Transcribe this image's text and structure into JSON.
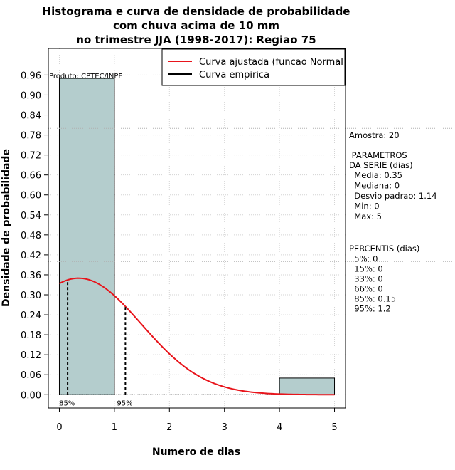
{
  "chart_data": {
    "type": "histogram",
    "title_lines": [
      "Histograma e curva de densidade de probabilidade",
      "com chuva acima de 10 mm",
      "no trimestre JJA (1998-2017): Regiao 75"
    ],
    "xlabel": "Numero de dias",
    "ylabel": "Densidade de probabilidade",
    "xlim": [
      -0.2,
      5.2
    ],
    "ylim": [
      -0.04,
      1.04
    ],
    "x_ticks": [
      0,
      1,
      2,
      3,
      4,
      5
    ],
    "y_ticks": [
      0.0,
      0.06,
      0.12,
      0.18,
      0.24,
      0.3,
      0.36,
      0.42,
      0.48,
      0.54,
      0.6,
      0.66,
      0.72,
      0.78,
      0.84,
      0.9,
      0.96
    ],
    "y_tick_labels": [
      "0.00",
      "0.06",
      "0.12",
      "0.18",
      "0.24",
      "0.30",
      "0.36",
      "0.42",
      "0.48",
      "0.54",
      "0.60",
      "0.66",
      "0.72",
      "0.78",
      "0.84",
      "0.90",
      "0.96"
    ],
    "bins": [
      {
        "x0": 0,
        "x1": 1,
        "density": 0.95
      },
      {
        "x0": 1,
        "x1": 2,
        "density": 0.0
      },
      {
        "x0": 2,
        "x1": 3,
        "density": 0.0
      },
      {
        "x0": 3,
        "x1": 4,
        "density": 0.0
      },
      {
        "x0": 4,
        "x1": 5,
        "density": 0.05
      }
    ],
    "fitted_curve": {
      "name": "Curva ajustada (funcao Normal)",
      "distribution": "normal",
      "mean": 0.35,
      "sd": 1.14,
      "x_range": [
        0,
        5
      ],
      "color": "#e8141b"
    },
    "empirical_curve": {
      "name": "Curva empirica",
      "color": "#000000"
    },
    "percentile_markers": [
      {
        "label": "85%",
        "x": 0.15
      },
      {
        "label": "95%",
        "x": 1.2
      }
    ],
    "dotted_hlines": [
      0.8,
      0.4
    ],
    "product_label": "Produto: CPTEC/INPE",
    "bar_color": "#b4cdcd"
  },
  "side_panel": {
    "sample": "Amostra: 20",
    "params_title": [
      " PARAMETROS",
      "DA SERIE (dias)"
    ],
    "params": [
      "  Media: 0.35",
      "  Mediana: 0",
      "  Desvio padrao: 1.14",
      "  Min: 0",
      "  Max: 5"
    ],
    "perc_title": "PERCENTIS (dias)",
    "percentiles": [
      "  5%: 0",
      "  15%: 0",
      "  33%: 0",
      "  66%: 0",
      "  85%: 0.15",
      "  95%: 1.2"
    ]
  }
}
